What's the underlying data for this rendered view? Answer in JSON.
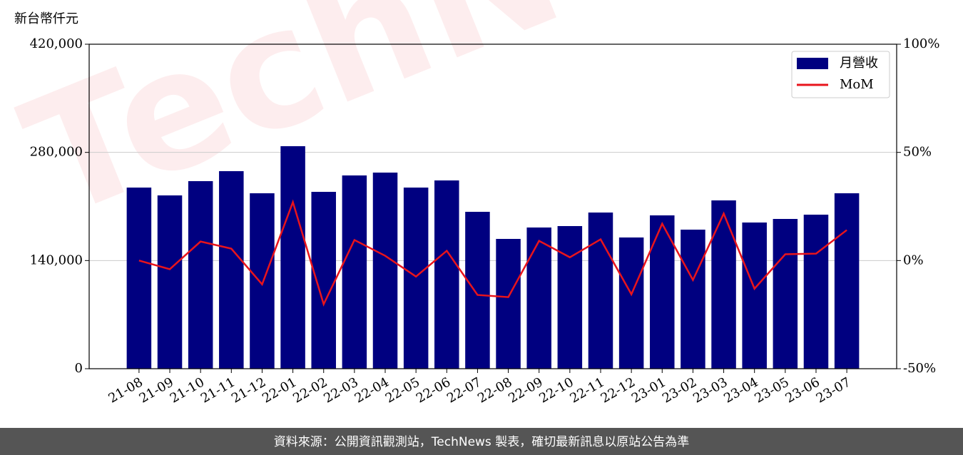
{
  "chart_data": {
    "type": "bar+line",
    "y_label": "新台幣仟元",
    "categories": [
      "21-08",
      "21-09",
      "21-10",
      "21-11",
      "21-12",
      "22-01",
      "22-02",
      "22-03",
      "22-04",
      "22-05",
      "22-06",
      "22-07",
      "22-08",
      "22-09",
      "22-10",
      "22-11",
      "22-12",
      "23-01",
      "23-02",
      "23-03",
      "23-04",
      "23-05",
      "23-06",
      "23-07"
    ],
    "series": [
      {
        "name": "月營收",
        "type": "bar",
        "color": "#000080",
        "axis": "y",
        "values": [
          234462,
          224308,
          242769,
          255692,
          227077,
          288000,
          228923,
          250154,
          253846,
          234462,
          243692,
          203077,
          168000,
          182769,
          184615,
          202154,
          169846,
          198462,
          180000,
          217846,
          189231,
          193846,
          199385,
          227077
        ]
      },
      {
        "name": "MoM",
        "type": "line",
        "color": "#e8141c",
        "axis": "y2",
        "values": [
          0,
          -4,
          8.8,
          5.5,
          -11,
          27,
          -20.2,
          9.5,
          2.2,
          -7.4,
          4.5,
          -15.9,
          -16.9,
          9.1,
          1.5,
          9.8,
          -15.6,
          17,
          -9,
          21.7,
          -13,
          2.9,
          3.2,
          14.1
        ]
      }
    ],
    "ylim": [
      0,
      420000
    ],
    "yticks": [
      0,
      {
        "value": 140000,
        "label": "140,000"
      },
      {
        "value": 280000,
        "label": "280,000"
      },
      {
        "value": 420000,
        "label": "420,000"
      }
    ],
    "y2lim": [
      -50,
      100
    ],
    "y2ticks": [
      {
        "value": -50,
        "label": "-50%"
      },
      {
        "value": 0,
        "label": "0%"
      },
      {
        "value": 50,
        "label": "50%"
      },
      {
        "value": 100,
        "label": "100%"
      }
    ],
    "grid": true,
    "legend": "upper right",
    "watermark": "TechNews",
    "footer": "資料來源：公開資訊觀測站，TechNews 製表，確切最新訊息以原站公告為準"
  }
}
